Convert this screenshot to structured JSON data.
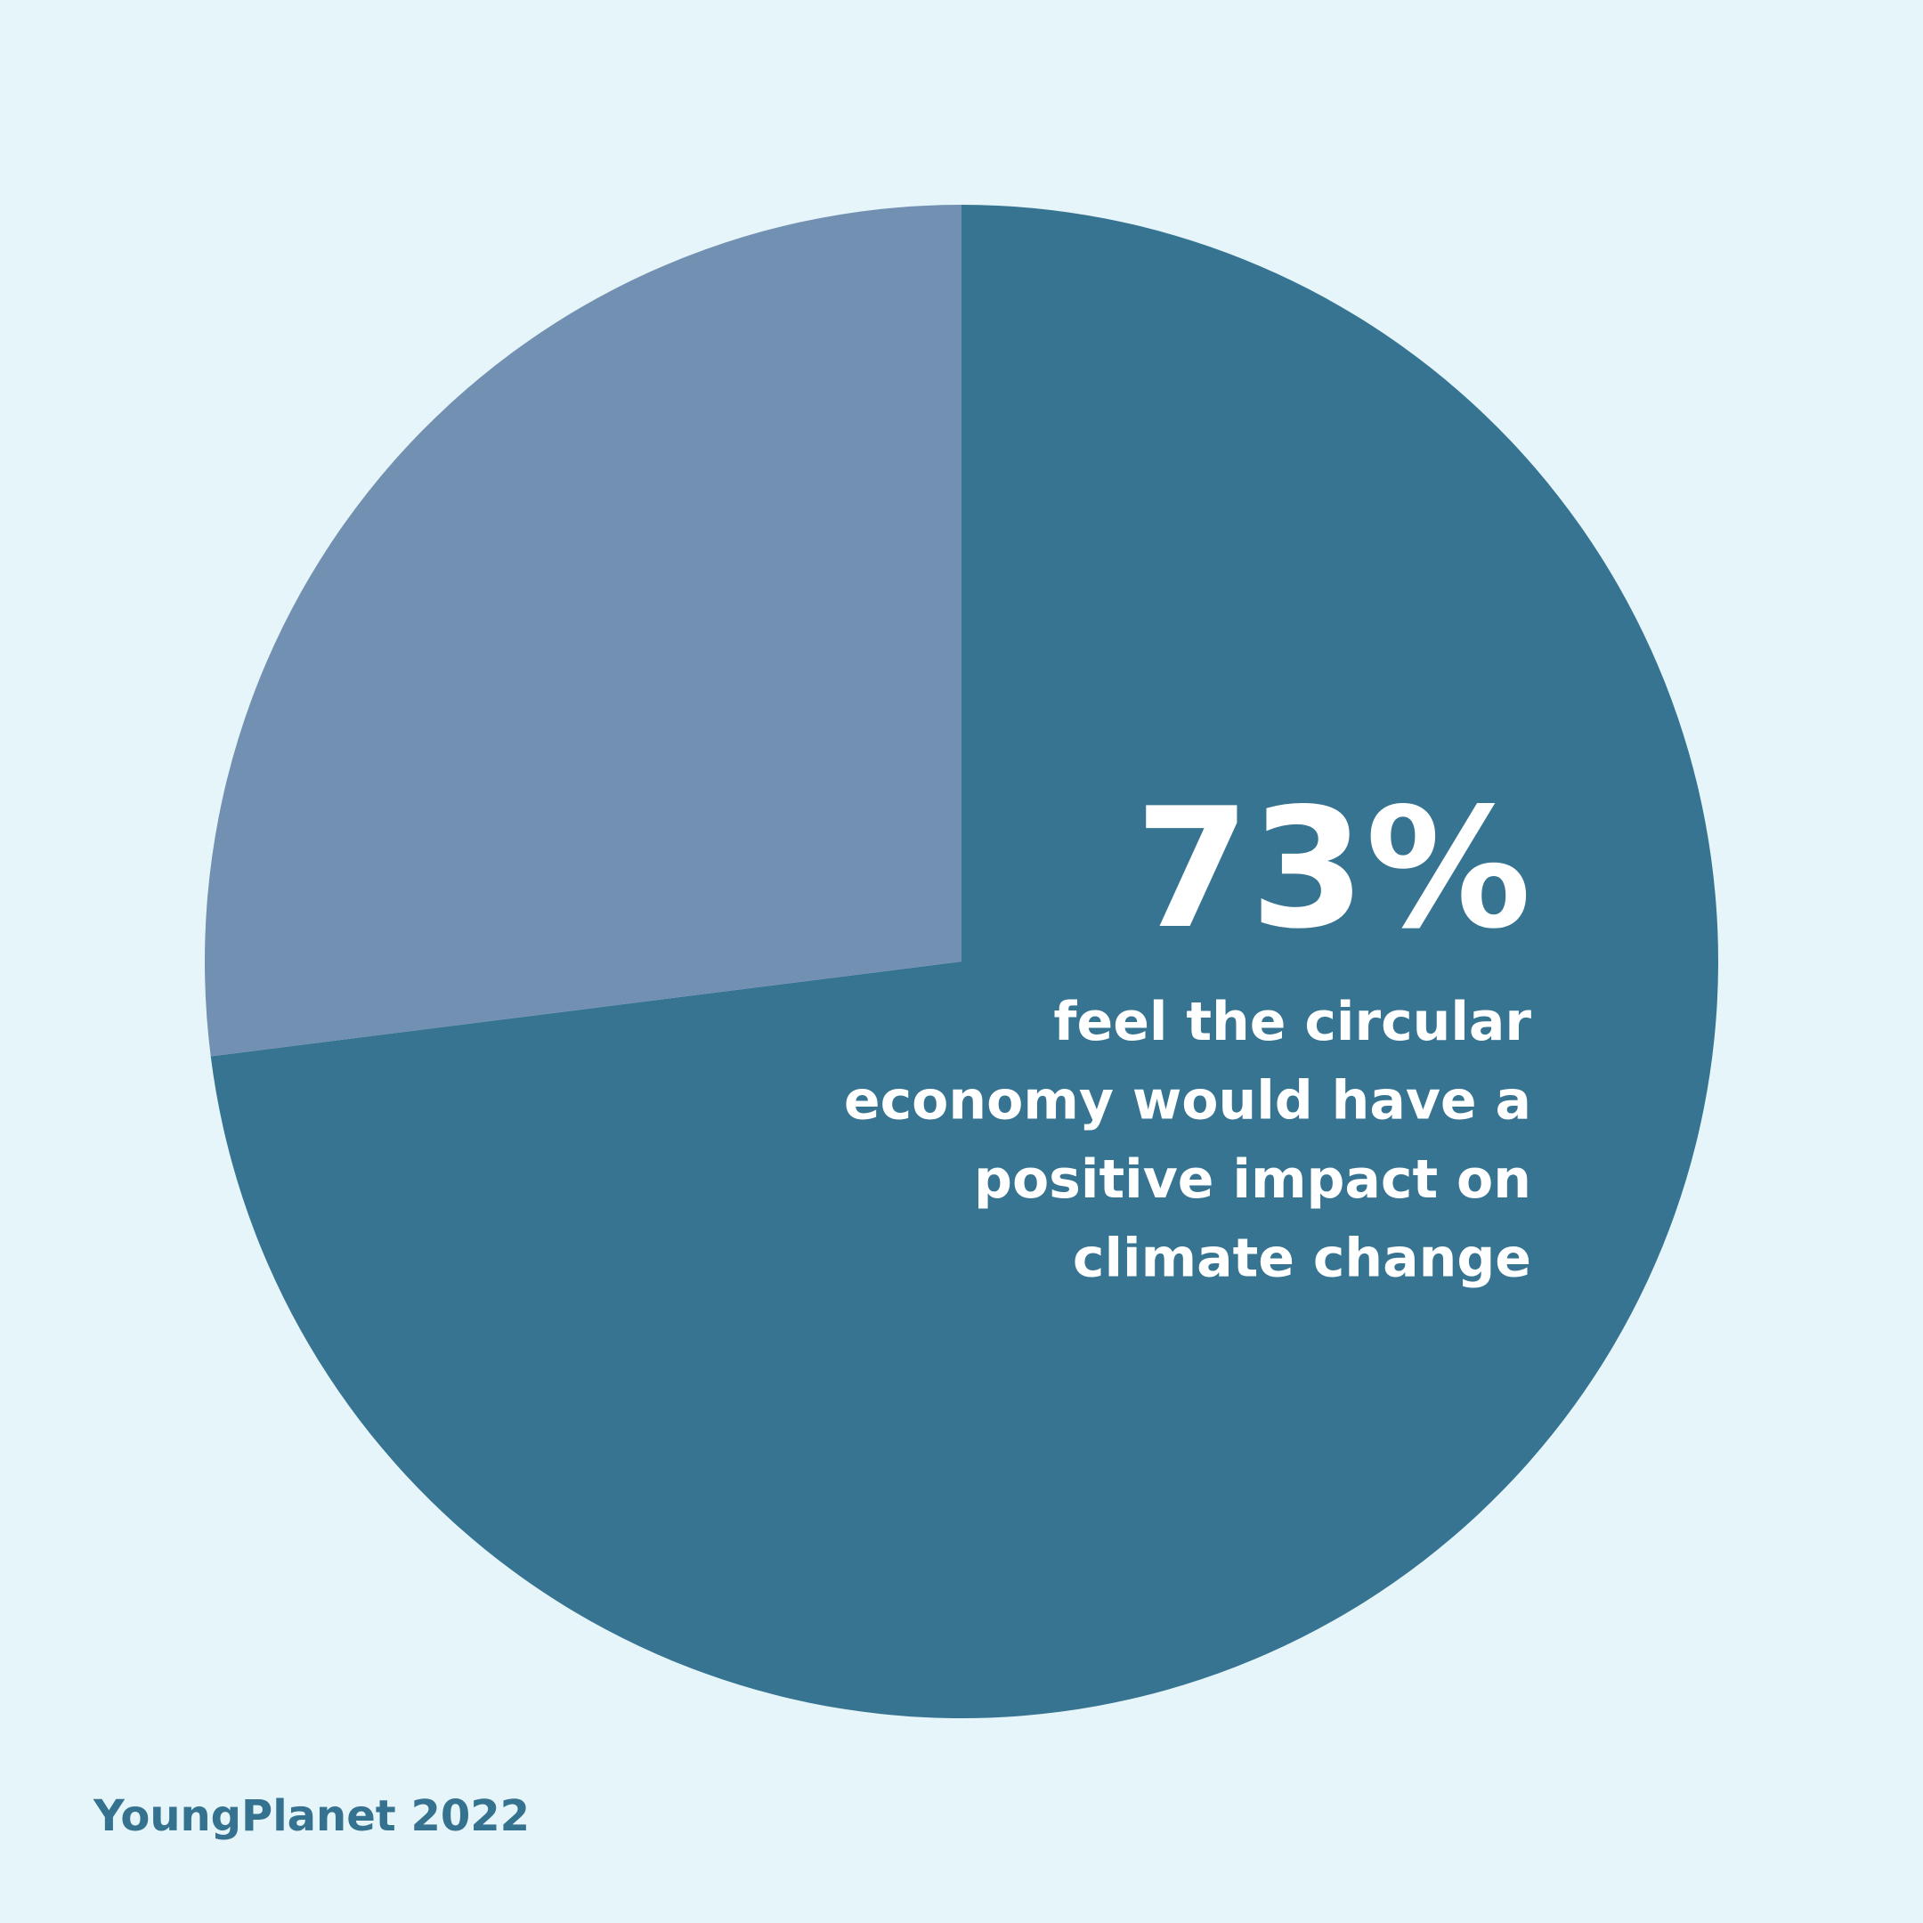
{
  "chart_data": {
    "type": "pie",
    "values": [
      73,
      27
    ],
    "value_labels": [
      "73%",
      null
    ],
    "colors": [
      "#367492",
      "#7290b2"
    ],
    "annotation": [
      "feel the circular",
      "economy would have a",
      "positive impact on",
      "climate change"
    ],
    "source": "YoungPlanet 2022"
  }
}
